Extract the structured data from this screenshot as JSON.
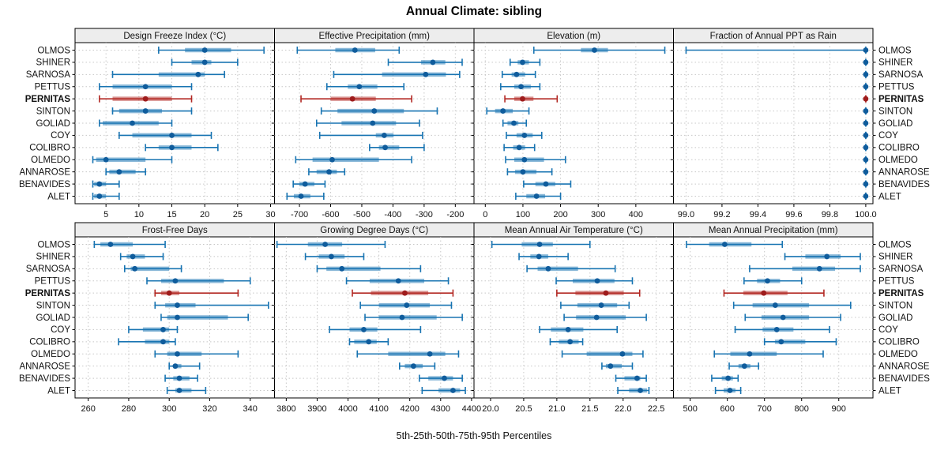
{
  "title": "Annual Climate: sibling",
  "caption": "5th-25th-50th-75th-95th Percentiles",
  "colors": {
    "series": "#1874b2",
    "series_dot": "#0f5c9c",
    "highlight": "#b22823",
    "highlight_dot": "#9e1c1c",
    "grid": "#c8c8c8",
    "strip_bg": "#ededed",
    "border": "#000000"
  },
  "chart_data": {
    "type": "scatter",
    "variant": "trellis_percentile_dotplot",
    "percentiles": [
      5,
      25,
      50,
      75,
      95
    ],
    "legend_position": "none",
    "grid": "dotted",
    "stations": [
      "OLMOS",
      "SHINER",
      "SARNOSA",
      "PETTUS",
      "PERNITAS",
      "SINTON",
      "GOLIAD",
      "COY",
      "COLIBRO",
      "OLMEDO",
      "ANNAROSE",
      "BENAVIDES",
      "ALET"
    ],
    "highlight": "PERNITAS",
    "panels": [
      {
        "label": "Design Freeze Index (°C)",
        "ticks": [
          5,
          10,
          15,
          20,
          25,
          30
        ],
        "tick_labels": [
          "5",
          "10",
          "15",
          "20",
          "25",
          "30"
        ],
        "xlim": [
          0.3,
          30.6
        ],
        "values": [
          [
            13,
            17,
            20,
            24,
            29
          ],
          [
            15,
            18,
            20,
            21,
            25
          ],
          [
            6,
            13,
            19,
            20,
            23
          ],
          [
            4,
            6,
            11,
            15,
            18
          ],
          [
            4,
            6,
            11,
            15,
            18
          ],
          [
            6,
            7,
            11,
            13.5,
            18
          ],
          [
            4,
            4.5,
            9,
            13,
            15
          ],
          [
            7,
            9,
            15,
            18,
            21
          ],
          [
            11,
            13,
            15,
            18,
            22
          ],
          [
            3,
            3.5,
            5,
            11,
            15
          ],
          [
            5,
            5.5,
            7,
            9.5,
            11
          ],
          [
            3,
            3.2,
            4,
            5,
            7
          ],
          [
            3,
            3.2,
            4,
            5,
            7
          ]
        ]
      },
      {
        "label": "Effective Precipitation (mm)",
        "ticks": [
          -700,
          -600,
          -500,
          -400,
          -300,
          -200
        ],
        "tick_labels": [
          "-700",
          "-600",
          "-500",
          "-400",
          "-300",
          "-200"
        ],
        "xlim": [
          -780,
          -140
        ],
        "values": [
          [
            -707,
            -585,
            -522,
            -457,
            -380
          ],
          [
            -415,
            -310,
            -272,
            -232,
            -178
          ],
          [
            -590,
            -435,
            -295,
            -230,
            -186
          ],
          [
            -612,
            -545,
            -508,
            -450,
            -365
          ],
          [
            -695,
            -600,
            -530,
            -455,
            -340
          ],
          [
            -630,
            -578,
            -460,
            -365,
            -258
          ],
          [
            -645,
            -565,
            -465,
            -390,
            -315
          ],
          [
            -635,
            -455,
            -428,
            -398,
            -305
          ],
          [
            -475,
            -445,
            -425,
            -380,
            -300
          ],
          [
            -712,
            -658,
            -595,
            -445,
            -340
          ],
          [
            -670,
            -645,
            -605,
            -580,
            -555
          ],
          [
            -720,
            -700,
            -682,
            -652,
            -618
          ],
          [
            -740,
            -718,
            -695,
            -665,
            -622
          ]
        ]
      },
      {
        "label": "Elevation (m)",
        "ticks": [
          0,
          100,
          200,
          300,
          400
        ],
        "tick_labels": [
          "0",
          "100",
          "200",
          "300",
          "400"
        ],
        "xlim": [
          -30,
          500
        ],
        "values": [
          [
            129,
            254,
            290,
            326,
            477
          ],
          [
            66,
            86,
            99,
            116,
            145
          ],
          [
            45,
            70,
            83,
            106,
            133
          ],
          [
            41,
            77,
            95,
            121,
            145
          ],
          [
            52,
            77,
            99,
            128,
            191
          ],
          [
            4,
            26,
            47,
            73,
            116
          ],
          [
            47,
            59,
            76,
            88,
            109
          ],
          [
            56,
            83,
            104,
            126,
            150
          ],
          [
            50,
            74,
            90,
            106,
            131
          ],
          [
            54,
            77,
            104,
            156,
            213
          ],
          [
            59,
            79,
            100,
            136,
            177
          ],
          [
            102,
            133,
            161,
            186,
            227
          ],
          [
            81,
            109,
            136,
            159,
            200
          ]
        ]
      },
      {
        "label": "Fraction of Annual PPT as Rain",
        "ticks": [
          99.0,
          99.2,
          99.4,
          99.6,
          99.8,
          100.0
        ],
        "tick_labels": [
          "99.0",
          "99.2",
          "99.4",
          "99.6",
          "99.8",
          "100.0"
        ],
        "xlim": [
          98.93,
          100.04
        ],
        "values": [
          [
            99.0,
            100,
            100,
            100,
            100
          ],
          [
            100,
            100,
            100,
            100,
            100
          ],
          [
            100,
            100,
            100,
            100,
            100
          ],
          [
            100,
            100,
            100,
            100,
            100
          ],
          [
            100,
            100,
            100,
            100,
            100
          ],
          [
            100,
            100,
            100,
            100,
            100
          ],
          [
            100,
            100,
            100,
            100,
            100
          ],
          [
            100,
            100,
            100,
            100,
            100
          ],
          [
            100,
            100,
            100,
            100,
            100
          ],
          [
            100,
            100,
            100,
            100,
            100
          ],
          [
            100,
            100,
            100,
            100,
            100
          ],
          [
            100,
            100,
            100,
            100,
            100
          ],
          [
            100,
            100,
            100,
            100,
            100
          ]
        ]
      },
      {
        "label": "Frost-Free Days",
        "ticks": [
          260,
          280,
          300,
          320,
          340
        ],
        "tick_labels": [
          "260",
          "280",
          "300",
          "320",
          "340"
        ],
        "xlim": [
          253.5,
          352
        ],
        "values": [
          [
            263,
            266,
            271,
            282,
            298
          ],
          [
            276,
            279,
            282,
            288,
            297
          ],
          [
            278,
            281,
            283,
            300,
            306
          ],
          [
            289,
            296,
            303,
            327,
            340
          ],
          [
            293,
            296,
            300,
            305,
            334
          ],
          [
            293,
            298,
            304,
            313,
            349
          ],
          [
            296,
            299,
            304,
            329,
            339
          ],
          [
            280,
            287,
            297,
            300,
            304
          ],
          [
            275,
            288,
            297,
            300,
            303
          ],
          [
            293,
            299,
            304,
            316,
            334
          ],
          [
            300,
            302,
            303,
            306,
            315
          ],
          [
            298,
            302,
            305,
            310,
            314
          ],
          [
            299,
            303,
            305,
            311,
            318
          ]
        ]
      },
      {
        "label": "Growing Degree Days (°C)",
        "ticks": [
          3800,
          3900,
          4000,
          4100,
          4200,
          4300,
          4400
        ],
        "tick_labels": [
          "3800",
          "3900",
          "4000",
          "4100",
          "4200",
          "4300",
          "4400"
        ],
        "xlim": [
          3762,
          4408
        ],
        "values": [
          [
            3770,
            3870,
            3926,
            3981,
            4120
          ],
          [
            3862,
            3905,
            3946,
            3989,
            4051
          ],
          [
            3900,
            3930,
            3980,
            4105,
            4235
          ],
          [
            3995,
            4070,
            4163,
            4247,
            4325
          ],
          [
            4014,
            4074,
            4184,
            4260,
            4340
          ],
          [
            4040,
            4100,
            4190,
            4265,
            4335
          ],
          [
            4055,
            4100,
            4175,
            4287,
            4370
          ],
          [
            3940,
            4005,
            4051,
            4095,
            4235
          ],
          [
            4005,
            4020,
            4067,
            4093,
            4130
          ],
          [
            4030,
            4130,
            4265,
            4315,
            4358
          ],
          [
            4167,
            4184,
            4212,
            4242,
            4281
          ],
          [
            4231,
            4260,
            4312,
            4340,
            4370
          ],
          [
            4240,
            4293,
            4340,
            4363,
            4380
          ]
        ]
      },
      {
        "label": "Mean Annual Air Temperature (°C)",
        "ticks": [
          20.0,
          20.5,
          21.0,
          21.5,
          22.0,
          22.5
        ],
        "tick_labels": [
          "20.0",
          "20.5",
          "21.0",
          "21.5",
          "22.0",
          "22.5"
        ],
        "xlim": [
          19.75,
          22.76
        ],
        "values": [
          [
            20.02,
            20.47,
            20.74,
            20.94,
            21.5
          ],
          [
            20.43,
            20.6,
            20.73,
            20.87,
            21.17
          ],
          [
            20.55,
            20.71,
            20.87,
            21.32,
            21.88
          ],
          [
            20.99,
            21.24,
            21.61,
            21.87,
            22.14
          ],
          [
            21.0,
            21.28,
            21.74,
            22.01,
            22.25
          ],
          [
            21.06,
            21.31,
            21.67,
            21.91,
            22.09
          ],
          [
            21.11,
            21.29,
            21.6,
            22.04,
            22.35
          ],
          [
            20.74,
            20.91,
            21.17,
            21.4,
            21.91
          ],
          [
            20.9,
            21.03,
            21.2,
            21.33,
            21.39
          ],
          [
            21.08,
            21.45,
            21.99,
            22.14,
            22.3
          ],
          [
            21.68,
            21.74,
            21.81,
            21.98,
            22.14
          ],
          [
            21.89,
            22.02,
            22.21,
            22.26,
            22.35
          ],
          [
            21.92,
            22.09,
            22.26,
            22.36,
            22.39
          ]
        ]
      },
      {
        "label": "Mean Annual Precipitation (mm)",
        "ticks": [
          500,
          600,
          700,
          800,
          900
        ],
        "tick_labels": [
          "500",
          "600",
          "700",
          "800",
          "900"
        ],
        "xlim": [
          455,
          992
        ],
        "values": [
          [
            490,
            551,
            593,
            665,
            748
          ],
          [
            755,
            810,
            868,
            905,
            958
          ],
          [
            660,
            775,
            848,
            890,
            958
          ],
          [
            645,
            680,
            708,
            742,
            800
          ],
          [
            591,
            643,
            698,
            762,
            860
          ],
          [
            617,
            668,
            729,
            820,
            932
          ],
          [
            648,
            692,
            750,
            820,
            905
          ],
          [
            621,
            695,
            733,
            778,
            875
          ],
          [
            700,
            728,
            745,
            810,
            893
          ],
          [
            565,
            608,
            660,
            733,
            858
          ],
          [
            605,
            630,
            646,
            662,
            684
          ],
          [
            558,
            585,
            602,
            615,
            629
          ],
          [
            568,
            590,
            607,
            622,
            636
          ]
        ]
      }
    ]
  }
}
